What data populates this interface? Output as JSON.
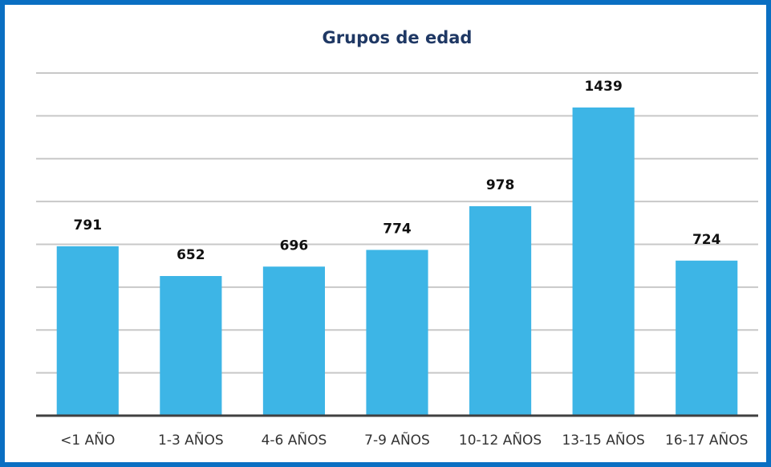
{
  "chart_data": {
    "type": "bar",
    "title": "Grupos de edad",
    "categories": [
      "<1 AÑO",
      "1-3 AÑOS",
      "4-6 AÑOS",
      "7-9 AÑOS",
      "10-12 AÑOS",
      "13-15 AÑOS",
      "16-17 AÑOS"
    ],
    "values": [
      791,
      652,
      696,
      774,
      978,
      1439,
      724
    ],
    "color": "#3db5e6",
    "ylim": [
      0,
      1600
    ],
    "yticks": [
      0,
      200,
      400,
      600,
      800,
      1000,
      1200,
      1400,
      1600
    ],
    "grid": true
  }
}
